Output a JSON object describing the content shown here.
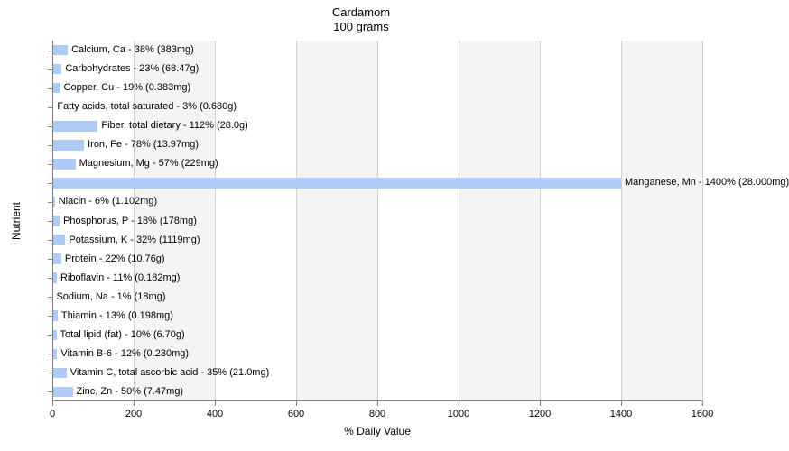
{
  "title": "Cardamom",
  "subtitle": "100 grams",
  "chart": {
    "type": "bar",
    "orientation": "horizontal",
    "x_axis": {
      "label": "% Daily Value",
      "min": 0,
      "max": 1600,
      "tick_step": 200
    },
    "y_axis": {
      "label": "Nutrient"
    },
    "bar_color": "#aecbf5",
    "shade_color": "#f4f4f4",
    "grid_color": "#d0d0d0",
    "background_color": "#ffffff",
    "label_fontsize": 11,
    "title_fontsize": 13,
    "nutrients": [
      {
        "label": "Calcium, Ca - 38% (383mg)",
        "value": 38
      },
      {
        "label": "Carbohydrates - 23% (68.47g)",
        "value": 23
      },
      {
        "label": "Copper, Cu - 19% (0.383mg)",
        "value": 19
      },
      {
        "label": "Fatty acids, total saturated - 3% (0.680g)",
        "value": 3
      },
      {
        "label": "Fiber, total dietary - 112% (28.0g)",
        "value": 112
      },
      {
        "label": "Iron, Fe - 78% (13.97mg)",
        "value": 78
      },
      {
        "label": "Magnesium, Mg - 57% (229mg)",
        "value": 57
      },
      {
        "label": "Manganese, Mn - 1400% (28.000mg)",
        "value": 1400
      },
      {
        "label": "Niacin - 6% (1.102mg)",
        "value": 6
      },
      {
        "label": "Phosphorus, P - 18% (178mg)",
        "value": 18
      },
      {
        "label": "Potassium, K - 32% (1119mg)",
        "value": 32
      },
      {
        "label": "Protein - 22% (10.76g)",
        "value": 22
      },
      {
        "label": "Riboflavin - 11% (0.182mg)",
        "value": 11
      },
      {
        "label": "Sodium, Na - 1% (18mg)",
        "value": 1
      },
      {
        "label": "Thiamin - 13% (0.198mg)",
        "value": 13
      },
      {
        "label": "Total lipid (fat) - 10% (6.70g)",
        "value": 10
      },
      {
        "label": "Vitamin B-6 - 12% (0.230mg)",
        "value": 12
      },
      {
        "label": "Vitamin C, total ascorbic acid - 35% (21.0mg)",
        "value": 35
      },
      {
        "label": "Zinc, Zn - 50% (7.47mg)",
        "value": 50
      }
    ]
  }
}
